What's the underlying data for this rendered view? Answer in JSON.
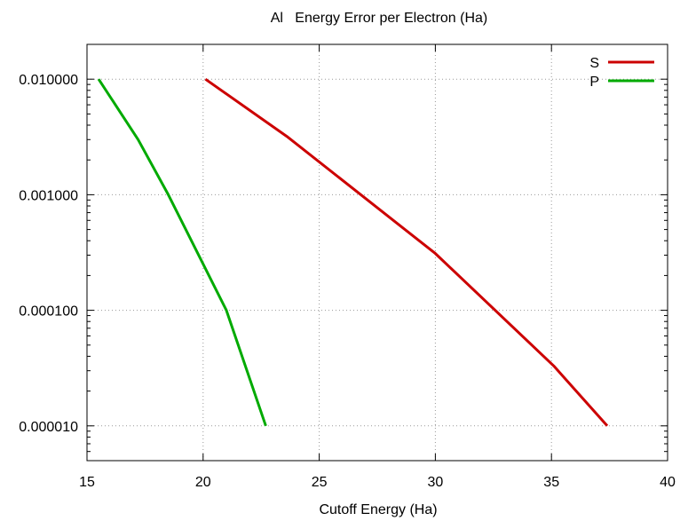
{
  "chart_data": {
    "type": "line",
    "title": "Al   Energy Error per Electron (Ha)",
    "xlabel": "Cutoff Energy (Ha)",
    "ylabel": "",
    "xlim": [
      15,
      40
    ],
    "ylim": [
      5e-06,
      0.02
    ],
    "yscale": "log",
    "grid": true,
    "legend_position": "top-right",
    "x_ticks": [
      15,
      20,
      25,
      30,
      35,
      40
    ],
    "x_tick_labels": [
      "15",
      "20",
      "25",
      "30",
      "35",
      "40"
    ],
    "y_ticks": [
      1e-05,
      0.0001,
      0.001,
      0.01
    ],
    "y_tick_labels": [
      "0.000010",
      "0.000100",
      "0.001000",
      "0.010000"
    ],
    "series": [
      {
        "name": "S",
        "color": "#cc0000",
        "x": [
          20.1,
          23.6,
          30.0,
          35.1,
          37.4
        ],
        "y": [
          0.01,
          0.0032,
          0.00031,
          3.3e-05,
          1e-05
        ]
      },
      {
        "name": "P",
        "color": "#00aa00",
        "x": [
          15.5,
          17.2,
          18.5,
          21.0,
          22.7
        ],
        "y": [
          0.01,
          0.003,
          0.001,
          0.0001,
          1e-05
        ]
      }
    ]
  }
}
